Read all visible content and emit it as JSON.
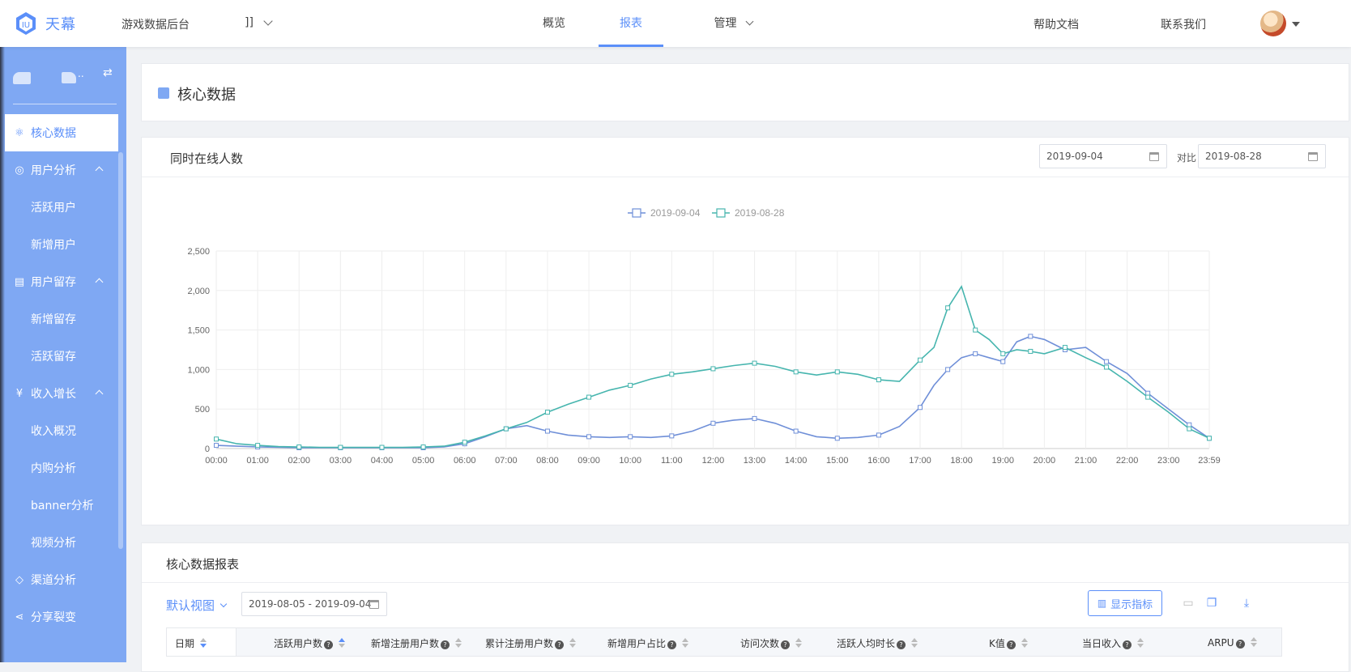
{
  "header": {
    "logo_text": "天幕",
    "app_name": "游戏数据后台",
    "game_selector": "]]",
    "nav": [
      {
        "label": "概览",
        "active": false
      },
      {
        "label": "报表",
        "active": true
      },
      {
        "label": "管理",
        "active": false
      }
    ],
    "help_link": "帮助文档",
    "contact_link": "联系我们"
  },
  "sidebar": {
    "head_suffix": "..",
    "items": [
      {
        "label": "核心数据",
        "icon": "atom-icon",
        "active": true
      },
      {
        "label": "用户分析",
        "icon": "user-circle-icon",
        "expanded": true
      },
      {
        "label": "活跃用户",
        "sub": true
      },
      {
        "label": "新增用户",
        "sub": true
      },
      {
        "label": "用户留存",
        "icon": "calendar-icon",
        "expanded": true
      },
      {
        "label": "新增留存",
        "sub": true
      },
      {
        "label": "活跃留存",
        "sub": true
      },
      {
        "label": "收入增长",
        "icon": "yen-circle-icon",
        "expanded": true
      },
      {
        "label": "收入概况",
        "sub": true
      },
      {
        "label": "内购分析",
        "sub": true
      },
      {
        "label": "banner分析",
        "sub": true
      },
      {
        "label": "视频分析",
        "sub": true
      },
      {
        "label": "渠道分析",
        "icon": "tag-icon"
      },
      {
        "label": "分享裂变",
        "icon": "share-icon"
      }
    ]
  },
  "page": {
    "title": "核心数据"
  },
  "online_card": {
    "title": "同时在线人数",
    "date_1": "2019-09-04",
    "compare_label": "对比",
    "date_2": "2019-08-28"
  },
  "chart_data": {
    "type": "line",
    "colors": {
      "2019-09-04": "#6f8fd8",
      "2019-08-28": "#46b5ae"
    },
    "legend_position": "top-center",
    "grid": true,
    "ylim": [
      0,
      2500
    ],
    "y_ticks": [
      "0",
      "500",
      "1,000",
      "1,500",
      "2,000",
      "2,500"
    ],
    "x_ticks": [
      "00:00",
      "01:00",
      "02:00",
      "03:00",
      "04:00",
      "05:00",
      "06:00",
      "07:00",
      "08:00",
      "09:00",
      "10:00",
      "11:00",
      "12:00",
      "13:00",
      "14:00",
      "15:00",
      "16:00",
      "17:00",
      "18:00",
      "19:00",
      "20:00",
      "21:00",
      "22:00",
      "23:00",
      "23:59"
    ],
    "x": [
      "00:00",
      "00:30",
      "01:00",
      "01:30",
      "02:00",
      "02:30",
      "03:00",
      "03:30",
      "04:00",
      "04:30",
      "05:00",
      "05:30",
      "06:00",
      "06:30",
      "07:00",
      "07:30",
      "08:00",
      "08:30",
      "09:00",
      "09:30",
      "10:00",
      "10:30",
      "11:00",
      "11:30",
      "12:00",
      "12:30",
      "13:00",
      "13:30",
      "14:00",
      "14:30",
      "15:00",
      "15:30",
      "16:00",
      "16:30",
      "17:00",
      "17:20",
      "17:40",
      "18:00",
      "18:20",
      "18:40",
      "19:00",
      "19:20",
      "19:40",
      "20:00",
      "20:30",
      "21:00",
      "21:30",
      "22:00",
      "22:30",
      "23:00",
      "23:30",
      "23:59"
    ],
    "series": [
      {
        "name": "2019-09-04",
        "values": [
          40,
          30,
          20,
          15,
          10,
          10,
          10,
          10,
          10,
          10,
          10,
          20,
          60,
          150,
          250,
          290,
          220,
          170,
          150,
          140,
          150,
          140,
          160,
          220,
          320,
          360,
          380,
          320,
          220,
          150,
          130,
          140,
          170,
          280,
          520,
          800,
          1000,
          1150,
          1200,
          1150,
          1100,
          1350,
          1420,
          1380,
          1250,
          1280,
          1100,
          950,
          700,
          500,
          300,
          130
        ]
      },
      {
        "name": "2019-08-28",
        "values": [
          120,
          60,
          40,
          25,
          20,
          15,
          15,
          15,
          15,
          15,
          20,
          30,
          80,
          160,
          250,
          330,
          460,
          560,
          650,
          740,
          800,
          880,
          940,
          970,
          1010,
          1050,
          1080,
          1040,
          970,
          930,
          970,
          940,
          870,
          850,
          1120,
          1280,
          1780,
          2050,
          1500,
          1380,
          1200,
          1250,
          1230,
          1200,
          1280,
          1150,
          1030,
          850,
          650,
          460,
          250,
          130
        ]
      }
    ]
  },
  "report": {
    "title": "核心数据报表",
    "view_label": "默认视图",
    "date_range": "2019-08-05 - 2019-09-04",
    "metrics_button": "显示指标",
    "columns": [
      "日期",
      "活跃用户数",
      "新增注册用户数",
      "累计注册用户数",
      "新增用户占比",
      "访问次数",
      "活跃人均时长",
      "K值",
      "当日收入",
      "ARPU"
    ]
  }
}
